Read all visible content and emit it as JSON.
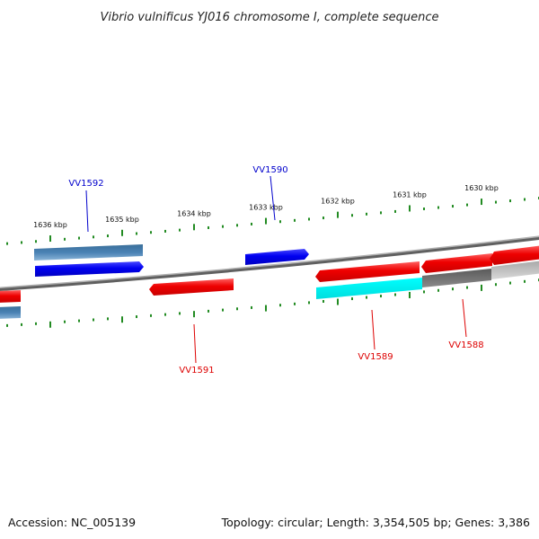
{
  "title": "Vibrio vulnificus YJ016 chromosome I, complete sequence",
  "footer": {
    "accession": "Accession: NC_005139",
    "summary": "Topology: circular; Length: 3,354,505 bp; Genes: 3,386"
  },
  "scale": {
    "tick_color": "#228b22",
    "labels": [
      "1636 kbp",
      "1635 kbp",
      "1634 kbp",
      "1633 kbp",
      "1632 kbp",
      "1631 kbp",
      "1630 kbp"
    ]
  },
  "genes": {
    "labeled": [
      {
        "name": "VV1592",
        "strand": "forward",
        "color": "#0000cc"
      },
      {
        "name": "VV1590",
        "strand": "forward",
        "color": "#0000cc"
      },
      {
        "name": "VV1591",
        "strand": "reverse",
        "color": "#dd0000"
      },
      {
        "name": "VV1589",
        "strand": "reverse",
        "color": "#dd0000"
      },
      {
        "name": "VV1588",
        "strand": "reverse",
        "color": "#dd0000"
      }
    ]
  },
  "colors": {
    "forward_gene": "#0000ff",
    "reverse_gene": "#ff0000",
    "backbone": "#808080",
    "steelblue_feature": "#4682b4",
    "cyan_feature": "#00ffff",
    "gray_feature": "#707070",
    "lightgray_feature": "#c0c0c0"
  }
}
